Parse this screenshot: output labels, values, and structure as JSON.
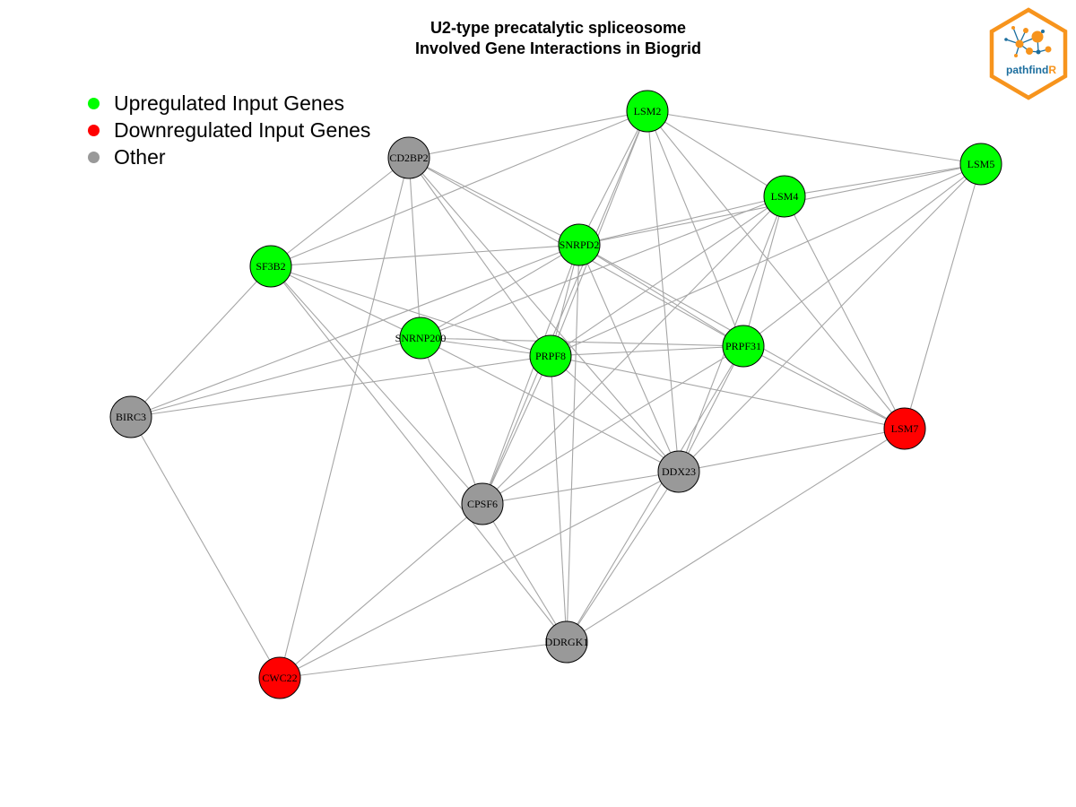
{
  "title": [
    "U2-type precatalytic spliceosome",
    "Involved Gene Interactions in Biogrid"
  ],
  "legend": [
    {
      "label": "Upregulated Input Genes",
      "color": "#00ff00"
    },
    {
      "label": "Downregulated Input Genes",
      "color": "#ff0000"
    },
    {
      "label": "Other",
      "color": "#999999"
    }
  ],
  "colors": {
    "upregulated": "#00ff00",
    "downregulated": "#ff0000",
    "other": "#999999",
    "edge": "#a6a6a6",
    "logo_orange": "#f7941d",
    "logo_blue": "#1c6e9e"
  },
  "logo": {
    "text_main": "pathfind",
    "text_accent": "R"
  },
  "nodes": [
    {
      "id": "LSM2",
      "label": "LSM2",
      "status": "upregulated"
    },
    {
      "id": "LSM5",
      "label": "LSM5",
      "status": "upregulated"
    },
    {
      "id": "LSM4",
      "label": "LSM4",
      "status": "upregulated"
    },
    {
      "id": "CD2BP2",
      "label": "CD2BP2",
      "status": "other"
    },
    {
      "id": "SNRPD2",
      "label": "SNRPD2",
      "status": "upregulated"
    },
    {
      "id": "SF3B2",
      "label": "SF3B2",
      "status": "upregulated"
    },
    {
      "id": "SNRNP200",
      "label": "SNRNP200",
      "status": "upregulated"
    },
    {
      "id": "PRPF8",
      "label": "PRPF8",
      "status": "upregulated"
    },
    {
      "id": "PRPF31",
      "label": "PRPF31",
      "status": "upregulated"
    },
    {
      "id": "BIRC3",
      "label": "BIRC3",
      "status": "other"
    },
    {
      "id": "LSM7",
      "label": "LSM7",
      "status": "downregulated"
    },
    {
      "id": "DDX23",
      "label": "DDX23",
      "status": "other"
    },
    {
      "id": "CPSF6",
      "label": "CPSF6",
      "status": "other"
    },
    {
      "id": "DDRGK1",
      "label": "DDRGK1",
      "status": "other"
    },
    {
      "id": "CWC22",
      "label": "CWC22",
      "status": "downregulated"
    }
  ],
  "edges": [
    [
      "LSM2",
      "LSM5"
    ],
    [
      "LSM2",
      "LSM4"
    ],
    [
      "LSM2",
      "CD2BP2"
    ],
    [
      "LSM2",
      "SNRPD2"
    ],
    [
      "LSM2",
      "SF3B2"
    ],
    [
      "LSM2",
      "PRPF8"
    ],
    [
      "LSM2",
      "PRPF31"
    ],
    [
      "LSM2",
      "LSM7"
    ],
    [
      "LSM2",
      "DDX23"
    ],
    [
      "LSM2",
      "CPSF6"
    ],
    [
      "LSM5",
      "LSM4"
    ],
    [
      "LSM5",
      "SNRPD2"
    ],
    [
      "LSM5",
      "PRPF8"
    ],
    [
      "LSM5",
      "PRPF31"
    ],
    [
      "LSM5",
      "LSM7"
    ],
    [
      "LSM5",
      "DDX23"
    ],
    [
      "LSM4",
      "SNRPD2"
    ],
    [
      "LSM4",
      "SNRNP200"
    ],
    [
      "LSM4",
      "PRPF8"
    ],
    [
      "LSM4",
      "PRPF31"
    ],
    [
      "LSM4",
      "LSM7"
    ],
    [
      "LSM4",
      "DDX23"
    ],
    [
      "LSM4",
      "CPSF6"
    ],
    [
      "CD2BP2",
      "SF3B2"
    ],
    [
      "CD2BP2",
      "SNRNP200"
    ],
    [
      "CD2BP2",
      "SNRPD2"
    ],
    [
      "CD2BP2",
      "PRPF8"
    ],
    [
      "CD2BP2",
      "PRPF31"
    ],
    [
      "CD2BP2",
      "DDX23"
    ],
    [
      "CD2BP2",
      "CWC22"
    ],
    [
      "SNRPD2",
      "SF3B2"
    ],
    [
      "SNRPD2",
      "SNRNP200"
    ],
    [
      "SNRPD2",
      "PRPF8"
    ],
    [
      "SNRPD2",
      "PRPF31"
    ],
    [
      "SNRPD2",
      "BIRC3"
    ],
    [
      "SNRPD2",
      "DDX23"
    ],
    [
      "SNRPD2",
      "CPSF6"
    ],
    [
      "SNRPD2",
      "DDRGK1"
    ],
    [
      "SNRPD2",
      "LSM7"
    ],
    [
      "SF3B2",
      "SNRNP200"
    ],
    [
      "SF3B2",
      "PRPF8"
    ],
    [
      "SF3B2",
      "BIRC3"
    ],
    [
      "SF3B2",
      "CPSF6"
    ],
    [
      "SF3B2",
      "DDRGK1"
    ],
    [
      "SNRNP200",
      "PRPF8"
    ],
    [
      "SNRNP200",
      "PRPF31"
    ],
    [
      "SNRNP200",
      "BIRC3"
    ],
    [
      "SNRNP200",
      "CPSF6"
    ],
    [
      "SNRNP200",
      "DDX23"
    ],
    [
      "PRPF8",
      "PRPF31"
    ],
    [
      "PRPF8",
      "BIRC3"
    ],
    [
      "PRPF8",
      "LSM7"
    ],
    [
      "PRPF8",
      "DDX23"
    ],
    [
      "PRPF8",
      "CPSF6"
    ],
    [
      "PRPF8",
      "DDRGK1"
    ],
    [
      "PRPF31",
      "LSM7"
    ],
    [
      "PRPF31",
      "DDX23"
    ],
    [
      "PRPF31",
      "CPSF6"
    ],
    [
      "PRPF31",
      "DDRGK1"
    ],
    [
      "BIRC3",
      "CWC22"
    ],
    [
      "LSM7",
      "DDX23"
    ],
    [
      "LSM7",
      "DDRGK1"
    ],
    [
      "DDX23",
      "CPSF6"
    ],
    [
      "DDX23",
      "DDRGK1"
    ],
    [
      "DDX23",
      "CWC22"
    ],
    [
      "CPSF6",
      "DDRGK1"
    ],
    [
      "CPSF6",
      "CWC22"
    ],
    [
      "DDRGK1",
      "CWC22"
    ]
  ]
}
